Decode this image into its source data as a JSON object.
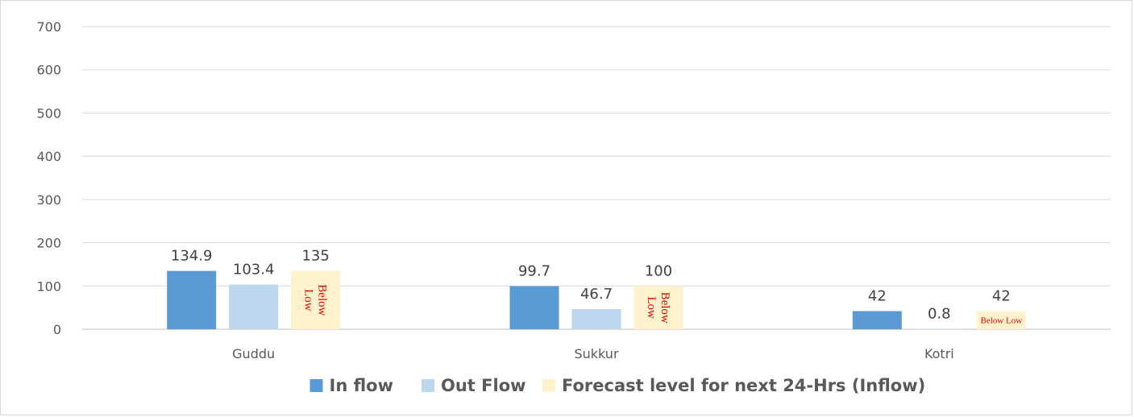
{
  "chart_data": {
    "type": "bar",
    "title": "",
    "xlabel": "",
    "ylabel": "",
    "categories": [
      "Guddu",
      "Sukkur",
      "Kotri"
    ],
    "ylim": [
      0,
      700
    ],
    "yticks": [
      "0",
      "100",
      "200",
      "300",
      "400",
      "500",
      "600",
      "700"
    ],
    "gridlines": true,
    "legend_position": "bottom",
    "series": [
      {
        "name": "In flow",
        "color": "#5b9bd5",
        "values": [
          134.9,
          99.7,
          42
        ],
        "labels": [
          "134.9",
          "99.7",
          "42"
        ]
      },
      {
        "name": "Out Flow",
        "color": "#bdd7ee",
        "values": [
          103.4,
          46.7,
          0.8
        ],
        "labels": [
          "103.4",
          "46.7",
          "0.8"
        ]
      },
      {
        "name": "Forecast level for next 24-Hrs (Inflow)",
        "color": "#fff2cc",
        "values": [
          135,
          100,
          42
        ],
        "labels": [
          "135",
          "100",
          "42"
        ],
        "annotations": [
          "Below Low",
          "Below Low",
          "Below Low"
        ]
      }
    ]
  }
}
